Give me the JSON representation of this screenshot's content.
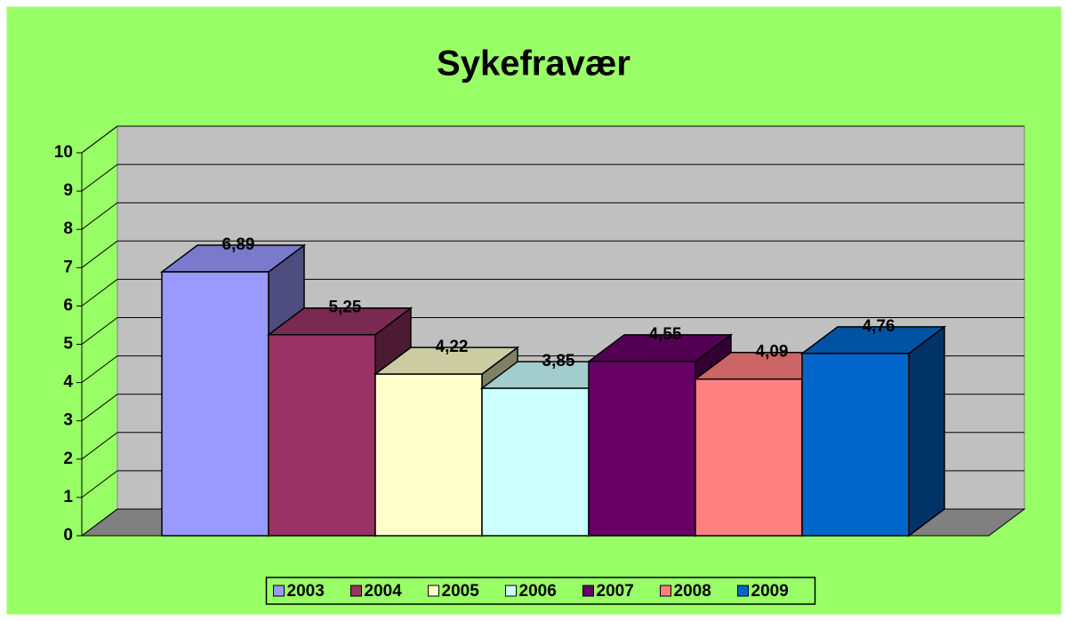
{
  "chart_data": {
    "type": "bar",
    "title": "Sykefravær",
    "series": [
      {
        "name": "2003",
        "color": "#9999ff",
        "values": [
          6.89
        ],
        "value_labels": [
          "6,89"
        ]
      },
      {
        "name": "2004",
        "color": "#993366",
        "values": [
          5.25
        ],
        "value_labels": [
          "5,25"
        ]
      },
      {
        "name": "2005",
        "color": "#ffffcc",
        "values": [
          4.22
        ],
        "value_labels": [
          "4,22"
        ]
      },
      {
        "name": "2006",
        "color": "#ccffff",
        "values": [
          3.85
        ],
        "value_labels": [
          "3,85"
        ]
      },
      {
        "name": "2007",
        "color": "#660066",
        "values": [
          4.55
        ],
        "value_labels": [
          "4,55"
        ]
      },
      {
        "name": "2008",
        "color": "#ff8080",
        "values": [
          4.09
        ],
        "value_labels": [
          "4,09"
        ]
      },
      {
        "name": "2009",
        "color": "#0066cc",
        "values": [
          4.76
        ],
        "value_labels": [
          "4,76"
        ]
      }
    ],
    "ylim": [
      0,
      10
    ],
    "yticks": [
      0,
      1,
      2,
      3,
      4,
      5,
      6,
      7,
      8,
      9,
      10
    ],
    "grid": true,
    "legend": "bottom"
  }
}
